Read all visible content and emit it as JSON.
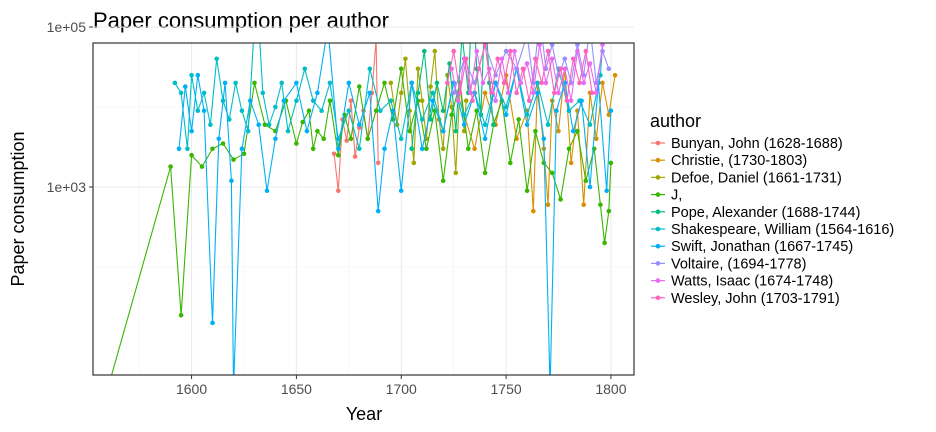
{
  "chart_data": {
    "type": "line",
    "title": "Paper consumption per author",
    "xlabel": "Year",
    "ylabel": "Paper consumption",
    "xlim": [
      1553,
      1811
    ],
    "ylim_log10": [
      0.65,
      4.8
    ],
    "y_scale": "log10",
    "x_ticks": [
      1600,
      1650,
      1700,
      1750,
      1800
    ],
    "y_ticks": [
      {
        "value": 1000,
        "label": "1e+03"
      },
      {
        "value": 100000,
        "label": "1e+05"
      }
    ],
    "grid": true,
    "legend_title": "author",
    "legend_position": "right",
    "series": [
      {
        "name": "Bunyan, John (1628-1688)",
        "color": "#F8766D",
        "points": [
          [
            1668,
            2600
          ],
          [
            1670,
            900
          ],
          [
            1672,
            7000
          ],
          [
            1674,
            3800
          ],
          [
            1676,
            12000
          ],
          [
            1678,
            2400
          ],
          [
            1680,
            5500
          ],
          [
            1682,
            9000
          ],
          [
            1684,
            4000
          ],
          [
            1686,
            15000
          ],
          [
            1688,
            70000
          ],
          [
            1689,
            2000
          ]
        ]
      },
      {
        "name": "Christie,  (1730-1803)",
        "color": "#D89000",
        "points": [
          [
            1730,
            8000
          ],
          [
            1735,
            3000
          ],
          [
            1740,
            15000
          ],
          [
            1745,
            6000
          ],
          [
            1750,
            25000
          ],
          [
            1755,
            4000
          ],
          [
            1760,
            9000
          ],
          [
            1763,
            500
          ],
          [
            1765,
            20000
          ],
          [
            1768,
            3000
          ],
          [
            1770,
            600
          ],
          [
            1772,
            12000
          ],
          [
            1775,
            5000
          ],
          [
            1778,
            30000
          ],
          [
            1781,
            2000
          ],
          [
            1784,
            9000
          ],
          [
            1787,
            600
          ],
          [
            1790,
            15000
          ],
          [
            1793,
            4000
          ],
          [
            1796,
            20000
          ],
          [
            1799,
            8000
          ],
          [
            1802,
            25000
          ]
        ]
      },
      {
        "name": "Defoe, Daniel (1661-1731)",
        "color": "#A3A500",
        "points": [
          [
            1695,
            20000
          ],
          [
            1698,
            6000
          ],
          [
            1700,
            15000
          ],
          [
            1702,
            40000
          ],
          [
            1704,
            9000
          ],
          [
            1706,
            2000
          ],
          [
            1708,
            30000
          ],
          [
            1710,
            12000
          ],
          [
            1712,
            4000
          ],
          [
            1714,
            18000
          ],
          [
            1716,
            50000
          ],
          [
            1718,
            7000
          ],
          [
            1720,
            3000
          ],
          [
            1722,
            25000
          ],
          [
            1724,
            10000
          ],
          [
            1726,
            1500
          ],
          [
            1728,
            20000
          ],
          [
            1730,
            5000
          ],
          [
            1731,
            12000
          ]
        ]
      },
      {
        "name": "J,",
        "color": "#39B600",
        "points": [
          [
            1560,
            3
          ],
          [
            1590,
            1800
          ],
          [
            1595,
            25
          ],
          [
            1600,
            2500
          ],
          [
            1605,
            1800
          ],
          [
            1610,
            3000
          ],
          [
            1615,
            3500
          ],
          [
            1620,
            2200
          ],
          [
            1625,
            2600
          ],
          [
            1630,
            20000
          ],
          [
            1635,
            6000
          ],
          [
            1640,
            5000
          ],
          [
            1645,
            12000
          ],
          [
            1650,
            3500
          ],
          [
            1653,
            6500
          ],
          [
            1656,
            9000
          ],
          [
            1658,
            3000
          ],
          [
            1660,
            5000
          ],
          [
            1663,
            4000
          ],
          [
            1666,
            12000
          ],
          [
            1670,
            2500
          ],
          [
            1673,
            8000
          ],
          [
            1676,
            4000
          ],
          [
            1680,
            18000
          ],
          [
            1684,
            4000
          ],
          [
            1688,
            9000
          ],
          [
            1692,
            20000
          ],
          [
            1696,
            7000
          ],
          [
            1700,
            30000
          ],
          [
            1704,
            5000
          ],
          [
            1708,
            12000
          ],
          [
            1712,
            3000
          ],
          [
            1716,
            9000
          ],
          [
            1720,
            1200
          ],
          [
            1724,
            8000
          ],
          [
            1728,
            20000
          ],
          [
            1732,
            3000
          ],
          [
            1736,
            9000
          ],
          [
            1740,
            1500
          ],
          [
            1744,
            6000
          ],
          [
            1748,
            12000
          ],
          [
            1752,
            2000
          ],
          [
            1756,
            7000
          ],
          [
            1760,
            900
          ],
          [
            1764,
            5000
          ],
          [
            1768,
            2000
          ],
          [
            1772,
            1500
          ],
          [
            1776,
            700
          ],
          [
            1780,
            3000
          ],
          [
            1784,
            5000
          ],
          [
            1788,
            1200
          ],
          [
            1792,
            3000
          ],
          [
            1795,
            600
          ],
          [
            1797,
            200
          ],
          [
            1799,
            500
          ],
          [
            1800,
            2000
          ]
        ]
      },
      {
        "name": "Pope, Alexander (1688-1744)",
        "color": "#00BF7D",
        "points": [
          [
            1705,
            3000
          ],
          [
            1708,
            15000
          ],
          [
            1711,
            50000
          ],
          [
            1714,
            7000
          ],
          [
            1717,
            20000
          ],
          [
            1720,
            9000
          ],
          [
            1723,
            35000
          ],
          [
            1726,
            5000
          ],
          [
            1729,
            80000
          ],
          [
            1732,
            15000
          ],
          [
            1734,
            400000
          ],
          [
            1736,
            30000
          ],
          [
            1738,
            8000
          ],
          [
            1740,
            200000
          ],
          [
            1742,
            20000
          ],
          [
            1744,
            6000
          ]
        ]
      },
      {
        "name": "Shakespeare, William (1564-1616)",
        "color": "#00BFC4",
        "points": [
          [
            1592,
            20000
          ],
          [
            1595,
            15000
          ],
          [
            1598,
            3000
          ],
          [
            1600,
            25000
          ],
          [
            1603,
            9000
          ],
          [
            1606,
            15000
          ],
          [
            1609,
            6000
          ],
          [
            1612,
            40000
          ],
          [
            1615,
            12000
          ],
          [
            1618,
            7000
          ],
          [
            1621,
            20000
          ],
          [
            1624,
            9000
          ],
          [
            1627,
            5000
          ],
          [
            1631,
            330000
          ],
          [
            1634,
            15000
          ],
          [
            1637,
            6000
          ],
          [
            1640,
            10000
          ],
          [
            1643,
            20000
          ],
          [
            1646,
            5000
          ],
          [
            1650,
            12000
          ],
          [
            1654,
            30000
          ],
          [
            1658,
            12000
          ],
          [
            1662,
            9000
          ],
          [
            1666,
            20000
          ],
          [
            1670,
            4000
          ],
          [
            1675,
            9000
          ],
          [
            1680,
            3000
          ],
          [
            1685,
            30000
          ],
          [
            1690,
            9000
          ],
          [
            1695,
            12000
          ],
          [
            1700,
            4000
          ],
          [
            1705,
            20000
          ],
          [
            1710,
            7000
          ],
          [
            1715,
            15000
          ],
          [
            1720,
            5000
          ],
          [
            1725,
            20000
          ],
          [
            1730,
            8000
          ],
          [
            1735,
            15000
          ],
          [
            1740,
            6000
          ],
          [
            1745,
            20000
          ],
          [
            1750,
            10000
          ],
          [
            1755,
            30000
          ],
          [
            1760,
            8000
          ],
          [
            1765,
            20000
          ],
          [
            1770,
            6000
          ],
          [
            1775,
            30000
          ],
          [
            1780,
            9000
          ],
          [
            1785,
            12000
          ],
          [
            1790,
            6000
          ],
          [
            1795,
            25000
          ],
          [
            1798,
            300000
          ]
        ]
      },
      {
        "name": "Swift, Jonathan (1667-1745)",
        "color": "#00B0F6",
        "points": [
          [
            1594,
            3000
          ],
          [
            1597,
            18000
          ],
          [
            1600,
            5000
          ],
          [
            1603,
            25000
          ],
          [
            1606,
            9000
          ],
          [
            1610,
            20
          ],
          [
            1613,
            4000
          ],
          [
            1616,
            20000
          ],
          [
            1619,
            1200
          ],
          [
            1620,
            3
          ],
          [
            1624,
            3000
          ],
          [
            1628,
            12000
          ],
          [
            1632,
            6000
          ],
          [
            1636,
            900
          ],
          [
            1640,
            4000
          ],
          [
            1644,
            12000
          ],
          [
            1650,
            20000
          ],
          [
            1655,
            5000
          ],
          [
            1660,
            15000
          ],
          [
            1665,
            100000
          ],
          [
            1670,
            3000
          ],
          [
            1675,
            20000
          ],
          [
            1680,
            6000
          ],
          [
            1685,
            15000
          ],
          [
            1689,
            500
          ],
          [
            1692,
            3000
          ],
          [
            1696,
            9000
          ],
          [
            1700,
            900
          ],
          [
            1705,
            20000
          ],
          [
            1710,
            3000
          ],
          [
            1715,
            12000
          ],
          [
            1720,
            5000
          ],
          [
            1725,
            20000
          ],
          [
            1730,
            6000
          ],
          [
            1735,
            15000
          ],
          [
            1740,
            4000
          ],
          [
            1745,
            20000
          ],
          [
            1750,
            8000
          ],
          [
            1755,
            30000
          ],
          [
            1760,
            6000
          ],
          [
            1765,
            15000
          ],
          [
            1768,
            4000
          ],
          [
            1771,
            3
          ],
          [
            1774,
            9000
          ],
          [
            1778,
            20000
          ],
          [
            1782,
            5000
          ],
          [
            1786,
            12000
          ],
          [
            1790,
            1000
          ],
          [
            1794,
            20000
          ],
          [
            1798,
            900
          ],
          [
            1800,
            9000
          ]
        ]
      },
      {
        "name": "Voltaire,  (1694-1778)",
        "color": "#9590FF",
        "points": [
          [
            1725,
            15000
          ],
          [
            1730,
            40000
          ],
          [
            1735,
            20000
          ],
          [
            1740,
            60000
          ],
          [
            1745,
            25000
          ],
          [
            1750,
            50000
          ],
          [
            1755,
            30000
          ],
          [
            1760,
            80000
          ],
          [
            1763,
            20000
          ],
          [
            1766,
            140000
          ],
          [
            1769,
            30000
          ],
          [
            1772,
            60000
          ],
          [
            1775,
            25000
          ],
          [
            1778,
            40000
          ],
          [
            1781,
            20000
          ],
          [
            1784,
            60000
          ],
          [
            1787,
            25000
          ],
          [
            1790,
            100000
          ],
          [
            1793,
            20000
          ],
          [
            1796,
            50000
          ],
          [
            1799,
            30000
          ]
        ]
      },
      {
        "name": "Watts, Isaac (1674-1748)",
        "color": "#E76BF3",
        "points": [
          [
            1724,
            30000
          ],
          [
            1727,
            12000
          ],
          [
            1730,
            40000
          ],
          [
            1733,
            15000
          ],
          [
            1736,
            50000
          ],
          [
            1739,
            20000
          ],
          [
            1742,
            30000
          ],
          [
            1745,
            12000
          ],
          [
            1748,
            40000
          ],
          [
            1751,
            15000
          ],
          [
            1754,
            50000
          ],
          [
            1757,
            20000
          ],
          [
            1760,
            35000
          ],
          [
            1763,
            15000
          ],
          [
            1766,
            60000
          ],
          [
            1769,
            20000
          ],
          [
            1772,
            40000
          ],
          [
            1775,
            15000
          ],
          [
            1778,
            30000
          ],
          [
            1781,
            12000
          ],
          [
            1784,
            50000
          ],
          [
            1787,
            20000
          ],
          [
            1790,
            35000
          ],
          [
            1793,
            15000
          ],
          [
            1796,
            60000
          ],
          [
            1799,
            110000
          ]
        ]
      },
      {
        "name": "Wesley, John (1703-1791)",
        "color": "#FF62BC",
        "points": [
          [
            1722,
            20000
          ],
          [
            1725,
            50000
          ],
          [
            1728,
            15000
          ],
          [
            1731,
            40000
          ],
          [
            1734,
            12000
          ],
          [
            1737,
            30000
          ],
          [
            1740,
            60000
          ],
          [
            1743,
            15000
          ],
          [
            1746,
            40000
          ],
          [
            1749,
            20000
          ],
          [
            1752,
            50000
          ],
          [
            1755,
            15000
          ],
          [
            1758,
            30000
          ],
          [
            1761,
            12000
          ],
          [
            1764,
            40000
          ],
          [
            1767,
            20000
          ],
          [
            1770,
            50000
          ],
          [
            1773,
            15000
          ],
          [
            1776,
            30000
          ],
          [
            1779,
            12000
          ],
          [
            1782,
            40000
          ],
          [
            1785,
            20000
          ],
          [
            1788,
            50000
          ],
          [
            1791,
            15000
          ]
        ]
      }
    ]
  }
}
